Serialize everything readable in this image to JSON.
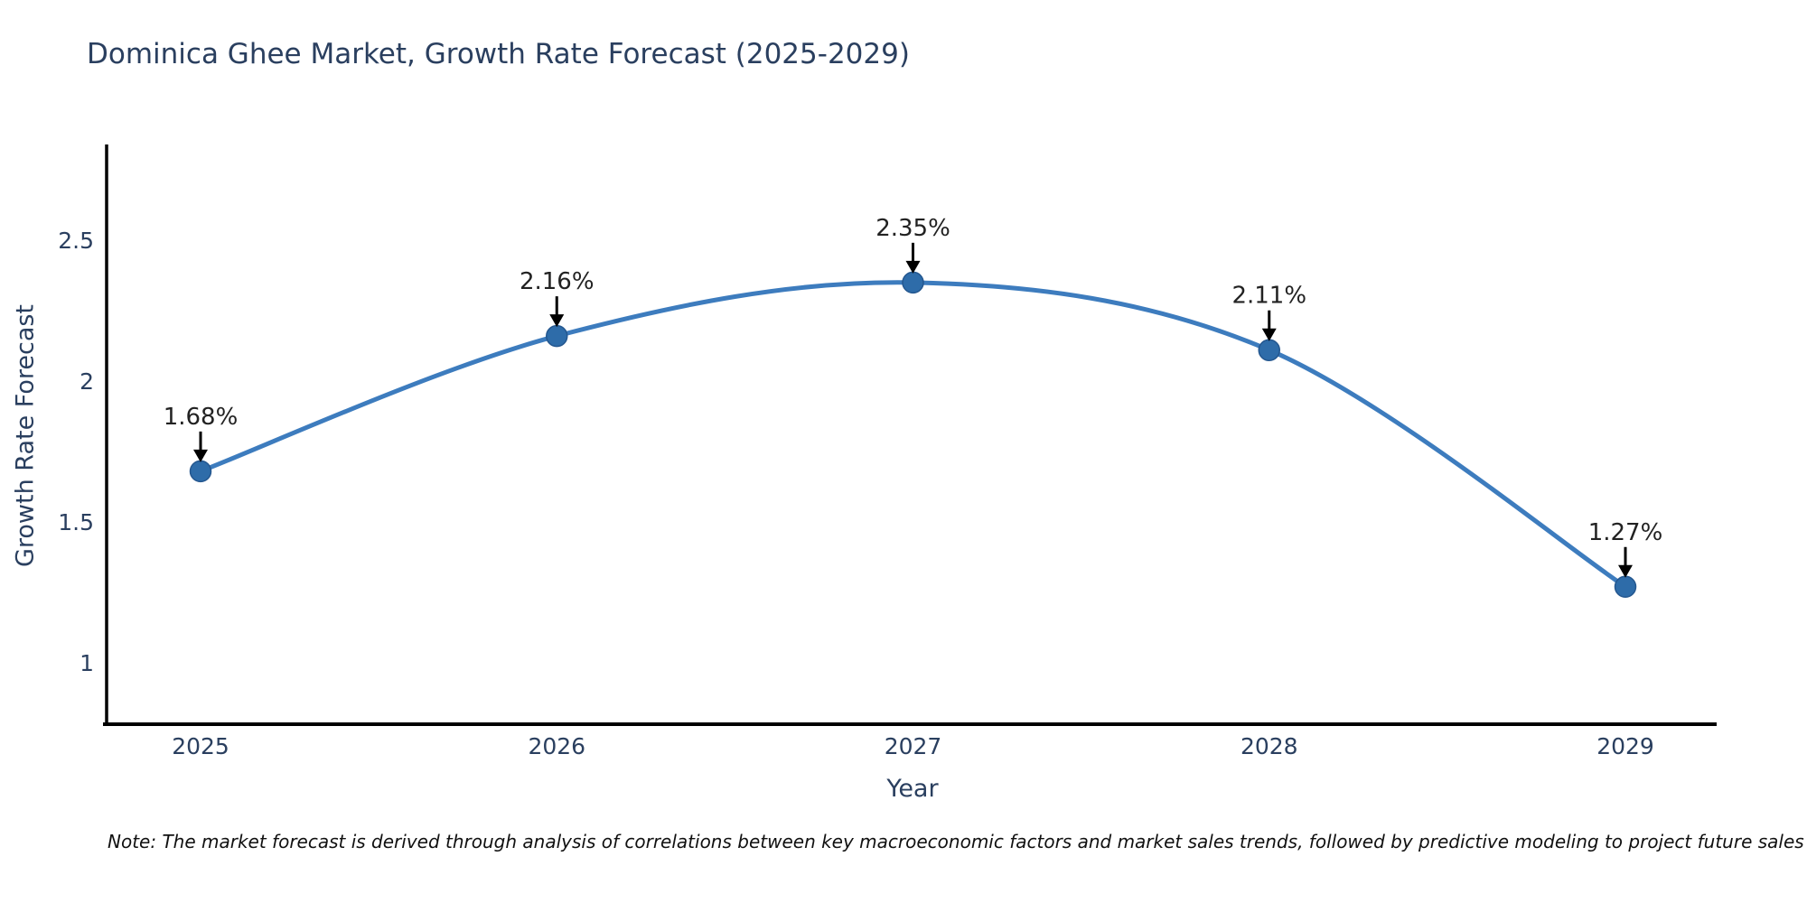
{
  "title": "Dominica Ghee Market, Growth Rate Forecast (2025-2029)",
  "note": "Note: The market forecast is derived through analysis of correlations between key macroeconomic factors and market sales trends, followed by predictive modeling to project future sales",
  "chart_data": {
    "type": "line",
    "title": "Dominica Ghee Market, Growth Rate Forecast (2025-2029)",
    "xlabel": "Year",
    "ylabel": "Growth Rate Forecast",
    "x": [
      2025,
      2026,
      2027,
      2028,
      2029
    ],
    "xtick_labels": [
      "2025",
      "2026",
      "2027",
      "2028",
      "2029"
    ],
    "series": [
      {
        "name": "Growth Rate Forecast",
        "values": [
          1.68,
          2.16,
          2.35,
          2.11,
          1.27
        ]
      }
    ],
    "data_labels": [
      "1.68%",
      "2.16%",
      "2.35%",
      "2.11%",
      "1.27%"
    ],
    "yticks": [
      1,
      1.5,
      2,
      2.5
    ],
    "ytick_labels": [
      "1",
      "1.5",
      "2",
      "2.5"
    ],
    "ylim": [
      0.782,
      2.84
    ],
    "line_shape": "spline",
    "grid": false,
    "legend_visible": false,
    "marker": "circle",
    "annotation_arrows": true,
    "colors": {
      "line": "#3d7cbe",
      "marker_fill": "#2e6ca9",
      "marker_edge": "#24578f",
      "axis_line": "#000000",
      "tick_text": "#2a3f5f",
      "title_text": "#2a3f5f",
      "annotation_text": "#222222",
      "annotation_arrow": "#000000",
      "background": "#ffffff"
    }
  }
}
